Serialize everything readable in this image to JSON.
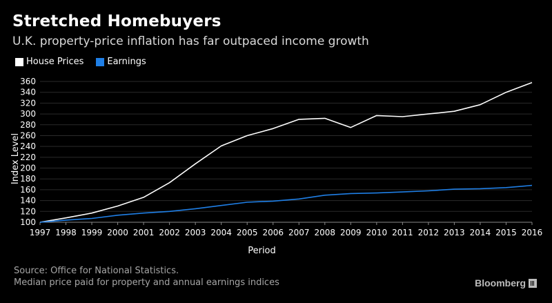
{
  "title": "Stretched Homebuyers",
  "subtitle": "U.K. property-price inflation has far outpaced income growth",
  "legend": [
    {
      "label": "House Prices",
      "color": "#ffffff"
    },
    {
      "label": "Earnings",
      "color": "#1f7fe6"
    }
  ],
  "source": {
    "line1": "Source: Office for National Statistics.",
    "line2": "Median price paid for property and annual earnings indices"
  },
  "brand": "Bloomberg",
  "chart_data": {
    "type": "line",
    "title": "Stretched Homebuyers",
    "xlabel": "Period",
    "ylabel": "Index Level",
    "ylim": [
      100,
      360
    ],
    "yticks": [
      100,
      120,
      140,
      160,
      180,
      200,
      220,
      240,
      260,
      280,
      300,
      320,
      340,
      360
    ],
    "x": [
      1997,
      1998,
      1999,
      2000,
      2001,
      2002,
      2003,
      2004,
      2005,
      2006,
      2007,
      2008,
      2009,
      2010,
      2011,
      2012,
      2013,
      2014,
      2015,
      2016
    ],
    "series": [
      {
        "name": "House Prices",
        "color": "#ffffff",
        "values": [
          100,
          108,
          117,
          130,
          146,
          173,
          208,
          241,
          260,
          273,
          290,
          292,
          275,
          297,
          295,
          300,
          305,
          317,
          340,
          358
        ]
      },
      {
        "name": "Earnings",
        "color": "#1f7fe6",
        "values": [
          100,
          104,
          107,
          113,
          117,
          120,
          125,
          131,
          137,
          139,
          143,
          150,
          153,
          154,
          156,
          158,
          161,
          162,
          164,
          168
        ]
      }
    ],
    "grid": true,
    "legend_position": "top-left"
  }
}
